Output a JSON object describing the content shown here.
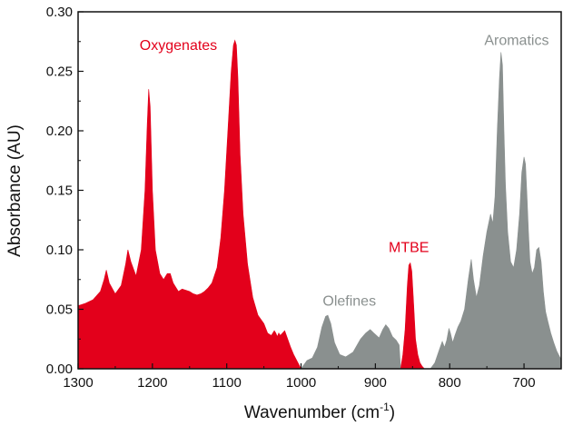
{
  "chart_data": {
    "type": "area",
    "xlabel": "Wavenumber (cm",
    "xlabel_sup": "-1",
    "xlabel_tail": ")",
    "ylabel": "Absorbance (AU)",
    "xlim": [
      1300,
      650
    ],
    "x_reversed": true,
    "ylim": [
      0,
      0.3
    ],
    "x_ticks": [
      1300,
      1200,
      1100,
      1000,
      900,
      800,
      700
    ],
    "y_ticks": [
      "0.00",
      "0.05",
      "0.10",
      "0.15",
      "0.20",
      "0.25",
      "0.30"
    ],
    "grid": false,
    "colors": {
      "red": "#e3001b",
      "gray": "#8a908f"
    },
    "regions": [
      {
        "label": "Oxygenates",
        "color": "red",
        "label_at": [
          1165,
          0.268
        ]
      },
      {
        "label": "Olefines",
        "color": "gray",
        "label_at": [
          935,
          0.053
        ]
      },
      {
        "label": "MTBE",
        "color": "red",
        "label_at": [
          855,
          0.098
        ]
      },
      {
        "label": "Aromatics",
        "color": "gray",
        "label_at": [
          710,
          0.272
        ]
      }
    ],
    "series": [
      {
        "name": "Oxygenates",
        "color": "red",
        "x": [
          1300,
          1290,
          1280,
          1270,
          1265,
          1262,
          1258,
          1250,
          1242,
          1236,
          1233,
          1229,
          1222,
          1215,
          1210,
          1207,
          1205,
          1203,
          1200,
          1196,
          1190,
          1185,
          1180,
          1176,
          1172,
          1165,
          1160,
          1155,
          1150,
          1145,
          1140,
          1135,
          1130,
          1125,
          1120,
          1113,
          1108,
          1103,
          1098,
          1094,
          1091,
          1089,
          1087,
          1085,
          1082,
          1078,
          1072,
          1065,
          1058,
          1050,
          1045,
          1040,
          1036,
          1034,
          1032,
          1030,
          1028,
          1025,
          1022,
          1018,
          1014,
          1010,
          1005,
          1000
        ],
        "y": [
          0.053,
          0.055,
          0.058,
          0.065,
          0.075,
          0.083,
          0.072,
          0.063,
          0.07,
          0.088,
          0.1,
          0.09,
          0.078,
          0.1,
          0.15,
          0.205,
          0.235,
          0.22,
          0.15,
          0.1,
          0.08,
          0.075,
          0.08,
          0.08,
          0.072,
          0.065,
          0.067,
          0.066,
          0.065,
          0.063,
          0.062,
          0.063,
          0.065,
          0.068,
          0.072,
          0.085,
          0.11,
          0.15,
          0.205,
          0.25,
          0.272,
          0.276,
          0.272,
          0.245,
          0.18,
          0.13,
          0.088,
          0.06,
          0.045,
          0.038,
          0.03,
          0.028,
          0.032,
          0.03,
          0.027,
          0.03,
          0.028,
          0.03,
          0.032,
          0.025,
          0.018,
          0.012,
          0.006,
          0.0
        ]
      },
      {
        "name": "Olefines",
        "color": "gray",
        "x": [
          1000,
          992,
          985,
          978,
          972,
          967,
          964,
          960,
          955,
          948,
          940,
          930,
          920,
          913,
          907,
          902,
          895,
          890,
          886,
          882,
          877,
          872,
          868,
          866
        ],
        "y": [
          0.0,
          0.007,
          0.009,
          0.018,
          0.035,
          0.044,
          0.045,
          0.038,
          0.022,
          0.012,
          0.01,
          0.014,
          0.025,
          0.03,
          0.033,
          0.03,
          0.026,
          0.033,
          0.037,
          0.034,
          0.027,
          0.024,
          0.02,
          0.0
        ]
      },
      {
        "name": "MTBE",
        "color": "red",
        "x": [
          866,
          863,
          860,
          857,
          855,
          853,
          851,
          849,
          846,
          843,
          840,
          837,
          834
        ],
        "y": [
          0.0,
          0.012,
          0.033,
          0.07,
          0.087,
          0.089,
          0.082,
          0.06,
          0.025,
          0.012,
          0.005,
          0.002,
          0.0
        ]
      },
      {
        "name": "Aromatics",
        "color": "gray",
        "x": [
          826,
          820,
          814,
          810,
          807,
          804,
          801,
          799,
          796,
          793,
          789,
          785,
          780,
          775,
          771,
          768,
          764,
          760,
          755,
          750,
          745,
          742,
          739,
          736,
          733,
          731,
          729,
          727,
          725,
          722,
          718,
          714,
          710,
          706,
          703,
          700,
          698,
          696,
          694,
          692,
          689,
          686,
          683,
          680,
          677,
          674,
          671,
          668,
          664,
          660,
          656,
          652,
          650
        ],
        "y": [
          0.0,
          0.005,
          0.016,
          0.023,
          0.018,
          0.024,
          0.034,
          0.03,
          0.022,
          0.028,
          0.035,
          0.04,
          0.05,
          0.075,
          0.092,
          0.075,
          0.06,
          0.07,
          0.095,
          0.115,
          0.13,
          0.122,
          0.145,
          0.2,
          0.245,
          0.266,
          0.255,
          0.2,
          0.155,
          0.115,
          0.09,
          0.085,
          0.1,
          0.13,
          0.165,
          0.178,
          0.172,
          0.145,
          0.115,
          0.09,
          0.08,
          0.085,
          0.1,
          0.102,
          0.09,
          0.065,
          0.048,
          0.04,
          0.03,
          0.022,
          0.015,
          0.01,
          0.008
        ]
      }
    ]
  }
}
